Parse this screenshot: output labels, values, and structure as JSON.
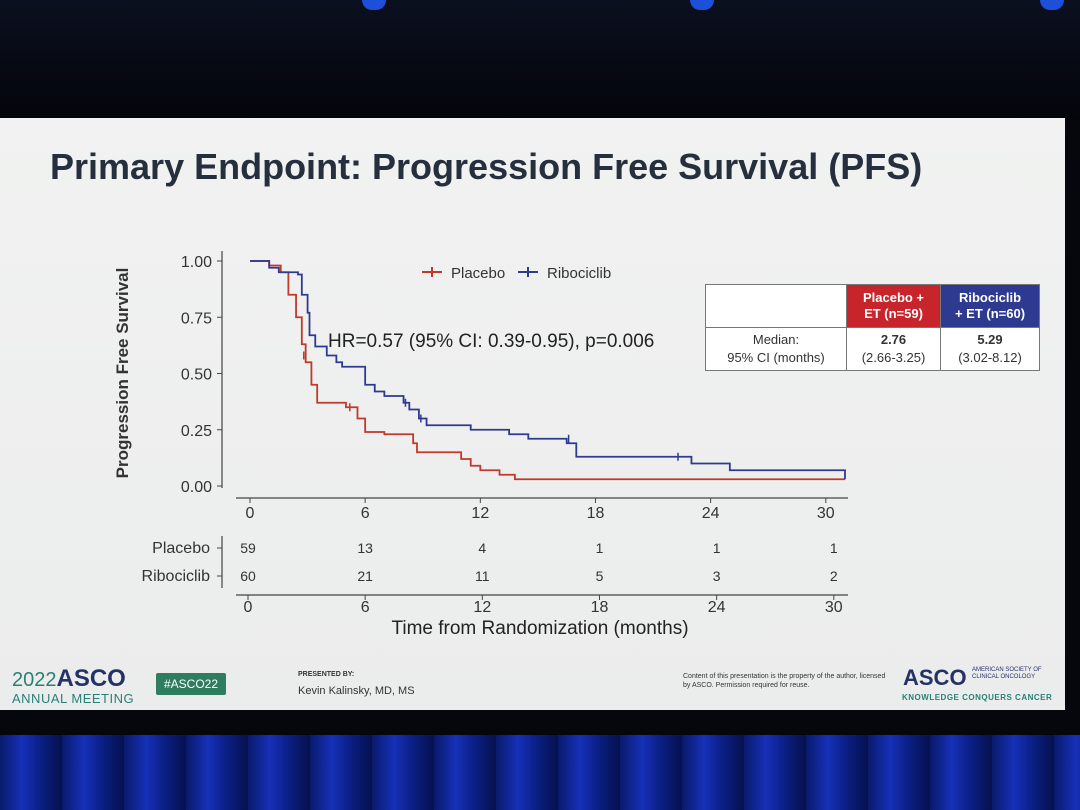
{
  "slide": {
    "title": "Primary Endpoint: Progression Free Survival (PFS)"
  },
  "colors": {
    "placebo": "#c0392b",
    "ribociclib": "#2e3a8f",
    "placebo_header": "#c8242b",
    "ribociclib_header": "#2e3a8f"
  },
  "chart_data": {
    "type": "line",
    "subtype": "kaplan-meier step",
    "title": "",
    "ylabel": "Progression Free Survival",
    "xlabel": "Time from Randomization (months)",
    "ylim": [
      0,
      1
    ],
    "xlim": [
      0,
      31
    ],
    "yticks": [
      "0.00",
      "0.25",
      "0.50",
      "0.75",
      "1.00"
    ],
    "yticks_values": [
      0,
      0.25,
      0.5,
      0.75,
      1.0
    ],
    "xticks": [
      "0",
      "6",
      "12",
      "18",
      "24",
      "30"
    ],
    "xticks_values": [
      0,
      6,
      12,
      18,
      24,
      30
    ],
    "legend": [
      "Placebo",
      "Ribociclib"
    ],
    "legend_position": "top",
    "annotation": "HR=0.57 (95% CI: 0.39-0.95), p=0.006",
    "series": [
      {
        "name": "Placebo",
        "points": [
          [
            0,
            1.0
          ],
          [
            1,
            0.98
          ],
          [
            1.6,
            0.95
          ],
          [
            2,
            0.85
          ],
          [
            2.4,
            0.75
          ],
          [
            2.7,
            0.63
          ],
          [
            2.9,
            0.55
          ],
          [
            3.2,
            0.45
          ],
          [
            3.5,
            0.37
          ],
          [
            5,
            0.35
          ],
          [
            5.6,
            0.3
          ],
          [
            6,
            0.24
          ],
          [
            7,
            0.23
          ],
          [
            8.5,
            0.19
          ],
          [
            8.7,
            0.15
          ],
          [
            11,
            0.12
          ],
          [
            11.5,
            0.09
          ],
          [
            12,
            0.07
          ],
          [
            13,
            0.05
          ],
          [
            13.8,
            0.03
          ],
          [
            31,
            0.03
          ]
        ],
        "censored": [
          [
            2.8,
            0.58
          ],
          [
            5.2,
            0.35
          ]
        ]
      },
      {
        "name": "Ribociclib",
        "points": [
          [
            0,
            1.0
          ],
          [
            1,
            0.97
          ],
          [
            1.5,
            0.95
          ],
          [
            2.5,
            0.94
          ],
          [
            2.7,
            0.85
          ],
          [
            3,
            0.77
          ],
          [
            3.1,
            0.67
          ],
          [
            3.4,
            0.62
          ],
          [
            4,
            0.58
          ],
          [
            4.5,
            0.55
          ],
          [
            4.8,
            0.53
          ],
          [
            6,
            0.45
          ],
          [
            6.5,
            0.42
          ],
          [
            7,
            0.4
          ],
          [
            8,
            0.37
          ],
          [
            8.3,
            0.34
          ],
          [
            8.8,
            0.3
          ],
          [
            9.2,
            0.27
          ],
          [
            11,
            0.27
          ],
          [
            11.5,
            0.25
          ],
          [
            13.5,
            0.23
          ],
          [
            14.5,
            0.21
          ],
          [
            16.5,
            0.19
          ],
          [
            17,
            0.13
          ],
          [
            23,
            0.1
          ],
          [
            25,
            0.07
          ],
          [
            31,
            0.06
          ],
          [
            31,
            0.03
          ]
        ],
        "censored": [
          [
            8.1,
            0.37
          ],
          [
            8.9,
            0.3
          ],
          [
            16.6,
            0.21
          ],
          [
            22.3,
            0.13
          ]
        ]
      }
    ]
  },
  "risk_table": {
    "xticks": [
      "0",
      "6",
      "12",
      "18",
      "24",
      "30"
    ],
    "rows": [
      {
        "label": "Placebo",
        "values": [
          "59",
          "13",
          "4",
          "1",
          "1",
          "1"
        ]
      },
      {
        "label": "Ribociclib",
        "values": [
          "60",
          "21",
          "11",
          "5",
          "3",
          "2"
        ]
      }
    ]
  },
  "median_table": {
    "placebo_header": [
      "Placebo +",
      "ET (n=59)"
    ],
    "ribociclib_header": [
      "Ribociclib",
      "+ ET (n=60)"
    ],
    "row_label": [
      "Median:",
      "95% CI (months)"
    ],
    "placebo_median": "2.76",
    "placebo_ci": "(2.66-3.25)",
    "ribociclib_median": "5.29",
    "ribociclib_ci": "(3.02-8.12)"
  },
  "footer": {
    "year": "2022",
    "asco": "ASCO",
    "meeting": "ANNUAL MEETING",
    "hashtag": "#ASCO22",
    "presented_by": "PRESENTED BY:",
    "presenter": "Kevin Kalinsky, MD, MS",
    "content_note": "Content of this presentation is the property of the author, licensed by ASCO. Permission required for reuse.",
    "logo": "ASCO",
    "society": "AMERICAN SOCIETY OF CLINICAL ONCOLOGY",
    "tagline": "KNOWLEDGE CONQUERS CANCER"
  }
}
